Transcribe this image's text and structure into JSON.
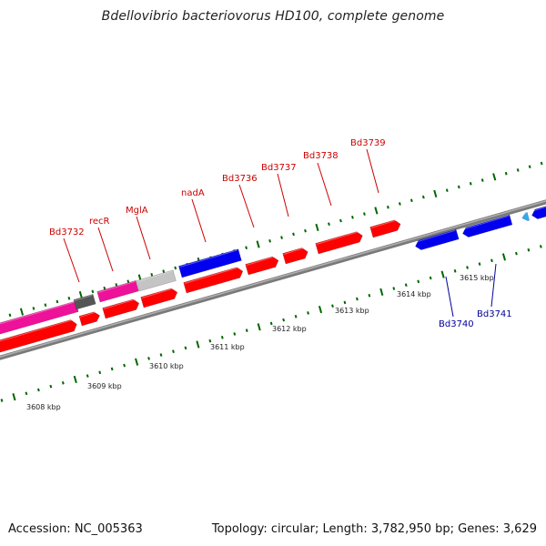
{
  "title": "Bdellovibrio bacteriovorus HD100, complete genome",
  "footer": {
    "accession": "Accession: NC_005363",
    "topology": "Topology: circular; Length: 3,782,950 bp; Genes: 3,629"
  },
  "colors": {
    "red_gene": "#ff0000",
    "blue_gene": "#0000ee",
    "pink_gene": "#ee1199",
    "grey_gene": "#c4c4c4",
    "dark_grey_gene": "#555555",
    "cyan_gene": "#33aaee",
    "backbone": "#888888",
    "tick": "#006600",
    "label_top": "#cc0000",
    "label_bottom": "#000099"
  },
  "gene_labels_top": [
    "Bd3732",
    "recR",
    "MglA",
    "nadA",
    "Bd3736",
    "Bd3737",
    "Bd3738",
    "Bd3739"
  ],
  "gene_labels_bottom": [
    "Bd3740",
    "Bd3741"
  ],
  "kbp_ticks": [
    "3608 kbp",
    "3609 kbp",
    "3610 kbp",
    "3611 kbp",
    "3612 kbp",
    "3613 kbp",
    "3614 kbp",
    "3615 kbp"
  ]
}
